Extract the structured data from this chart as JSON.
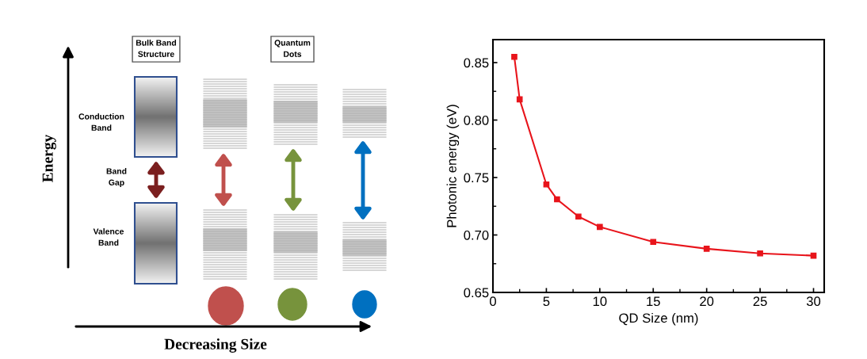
{
  "chart_data": [
    {
      "type": "other",
      "annotations": [
        "Bulk Band\nStructure",
        "Quantum\nDots",
        "Conduction\nBand",
        "Band\nGap",
        "Valence\nBand",
        "Energy",
        "Decreasing Size"
      ]
    },
    {
      "type": "line",
      "xlabel": "QD Size (nm)",
      "ylabel": "Photonic energy (eV)",
      "x": [
        2,
        2.5,
        5,
        6,
        8,
        10,
        15,
        20,
        25,
        30
      ],
      "series": [
        {
          "color": "#e8141b",
          "values": [
            0.855,
            0.818,
            0.744,
            0.731,
            0.716,
            0.707,
            0.694,
            0.688,
            0.684,
            0.682
          ]
        }
      ],
      "xlim": [
        0,
        31
      ],
      "ylim": [
        0.65,
        0.87
      ],
      "xticks": [
        0,
        5,
        10,
        15,
        20,
        25,
        30
      ],
      "yticks": [
        {
          "value": 0.65,
          "label": "0.65"
        },
        {
          "value": 0.7,
          "label": "0.70"
        },
        {
          "value": 0.75,
          "label": "0.75"
        },
        {
          "value": 0.8,
          "label": "0.80"
        },
        {
          "value": 0.85,
          "label": "0.85"
        }
      ],
      "marker": "square",
      "line_style": "solid",
      "grid": false
    }
  ]
}
